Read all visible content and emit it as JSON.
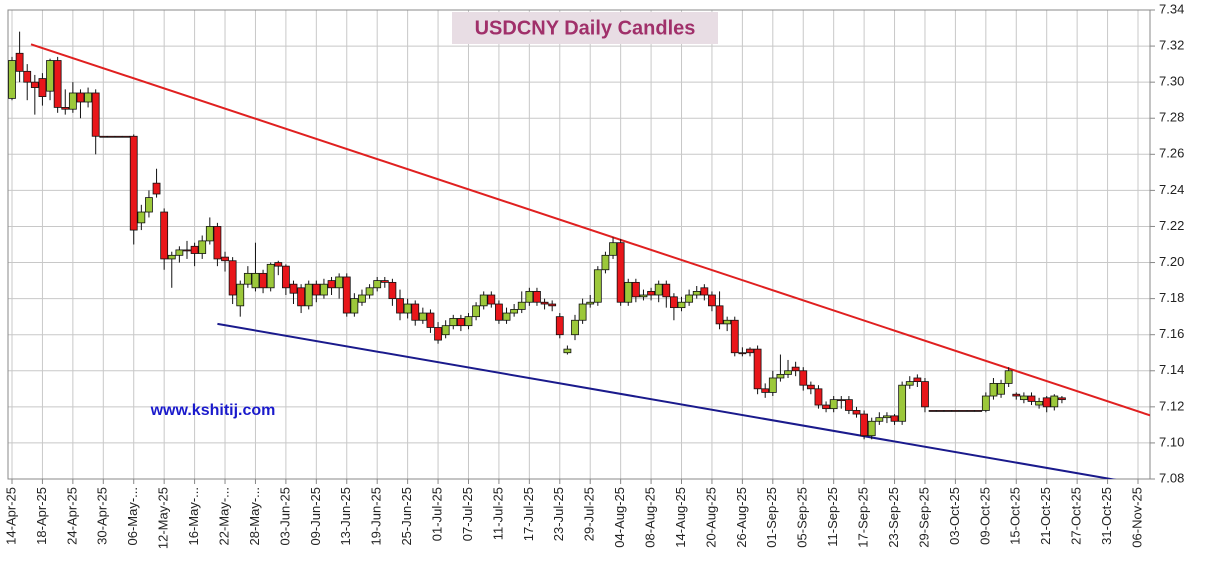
{
  "chart_data": {
    "type": "candlestick",
    "title": "USDCNY Daily Candles",
    "annotation": "www.kshitij.com",
    "categories": [
      "14-Apr-25",
      null,
      null,
      null,
      "18-Apr-25",
      null,
      null,
      null,
      "24-Apr-25",
      null,
      null,
      null,
      "30-Apr-25",
      null,
      null,
      null,
      "06-May-...",
      null,
      null,
      null,
      "12-May-25",
      null,
      null,
      null,
      "16-May-...",
      null,
      null,
      null,
      "22-May-...",
      null,
      null,
      null,
      "28-May-...",
      null,
      null,
      null,
      "03-Jun-25",
      null,
      null,
      null,
      "09-Jun-25",
      null,
      null,
      null,
      "13-Jun-25",
      null,
      null,
      null,
      "19-Jun-25",
      null,
      null,
      null,
      "25-Jun-25",
      null,
      null,
      null,
      "01-Jul-25",
      null,
      null,
      null,
      "07-Jul-25",
      null,
      null,
      null,
      "11-Jul-25",
      null,
      null,
      null,
      "17-Jul-25",
      null,
      null,
      null,
      "23-Jul-25",
      null,
      null,
      null,
      "29-Jul-25",
      null,
      null,
      null,
      "04-Aug-25",
      null,
      null,
      null,
      "08-Aug-25",
      null,
      null,
      null,
      "14-Aug-25",
      null,
      null,
      null,
      "20-Aug-25",
      null,
      null,
      null,
      "26-Aug-25",
      null,
      null,
      null,
      "01-Sep-25",
      null,
      null,
      null,
      "05-Sep-25",
      null,
      null,
      null,
      "11-Sep-25",
      null,
      null,
      null,
      "17-Sep-25",
      null,
      null,
      null,
      "23-Sep-25",
      null,
      null,
      null,
      "29-Sep-25",
      null,
      null,
      null,
      "03-Oct-25",
      null,
      null,
      null,
      "09-Oct-25",
      null,
      null,
      null,
      "15-Oct-25",
      null,
      null,
      null,
      "21-Oct-25",
      null,
      null,
      null,
      "27-Oct-25",
      null,
      null,
      null,
      "31-Oct-25",
      null,
      null,
      null,
      "06-Nov-25"
    ],
    "open": [
      7.291,
      7.316,
      7.306,
      7.3,
      7.302,
      7.295,
      7.312,
      7.286,
      7.285,
      7.294,
      7.289,
      7.294,
      7.27,
      7.27,
      7.27,
      7.27,
      7.27,
      7.222,
      7.228,
      7.244,
      7.228,
      7.202,
      7.204,
      7.207,
      7.209,
      7.205,
      7.212,
      7.22,
      7.203,
      7.201,
      7.176,
      7.188,
      7.186,
      7.194,
      7.186,
      7.2,
      7.198,
      7.188,
      7.186,
      7.176,
      7.188,
      7.182,
      7.19,
      7.186,
      7.192,
      7.172,
      7.178,
      7.182,
      7.186,
      7.19,
      7.189,
      7.18,
      7.172,
      7.177,
      7.168,
      7.172,
      7.164,
      7.16,
      7.165,
      7.169,
      7.165,
      7.17,
      7.176,
      7.182,
      7.177,
      7.168,
      7.172,
      7.174,
      7.178,
      7.184,
      7.178,
      7.177,
      7.17,
      7.15,
      7.16,
      7.168,
      7.177,
      7.178,
      7.196,
      7.204,
      7.211,
      7.178,
      7.189,
      7.181,
      7.184,
      7.182,
      7.188,
      7.181,
      7.175,
      7.178,
      7.182,
      7.186,
      7.182,
      7.176,
      7.166,
      7.168,
      7.15,
      7.152,
      7.152,
      7.13,
      7.128,
      7.136,
      7.138,
      7.142,
      7.14,
      7.132,
      7.13,
      7.121,
      7.119,
      7.124,
      7.124,
      7.118,
      7.116,
      7.104,
      7.112,
      7.114,
      7.115,
      7.112,
      7.132,
      7.136,
      7.134,
      7.118,
      7.118,
      7.118,
      7.118,
      7.118,
      7.118,
      7.118,
      7.118,
      7.126,
      7.127,
      7.133,
      7.127,
      7.124,
      7.126,
      7.121,
      7.125,
      7.12,
      7.125,
      null,
      null,
      null,
      null,
      null,
      null,
      null,
      null,
      null,
      null
    ],
    "high": [
      7.314,
      7.328,
      7.31,
      7.304,
      7.305,
      7.313,
      7.314,
      7.296,
      7.3,
      7.296,
      7.297,
      7.296,
      7.27,
      7.27,
      7.27,
      7.27,
      7.271,
      7.232,
      7.24,
      7.252,
      7.23,
      7.206,
      7.209,
      7.212,
      7.211,
      7.215,
      7.225,
      7.222,
      7.206,
      7.203,
      7.19,
      7.198,
      7.211,
      7.196,
      7.2,
      7.201,
      7.199,
      7.19,
      7.188,
      7.19,
      7.19,
      7.191,
      7.192,
      7.194,
      7.194,
      7.183,
      7.185,
      7.188,
      7.192,
      7.192,
      7.191,
      7.185,
      7.18,
      7.179,
      7.175,
      7.174,
      7.167,
      7.168,
      7.171,
      7.171,
      7.172,
      7.178,
      7.184,
      7.184,
      7.179,
      7.175,
      7.177,
      7.184,
      7.186,
      7.186,
      7.18,
      7.179,
      7.172,
      7.154,
      7.171,
      7.18,
      7.182,
      7.198,
      7.206,
      7.214,
      7.213,
      7.191,
      7.191,
      7.185,
      7.186,
      7.19,
      7.19,
      7.183,
      7.181,
      7.185,
      7.187,
      7.188,
      7.184,
      7.184,
      7.17,
      7.17,
      7.153,
      7.153,
      7.154,
      7.133,
      7.14,
      7.149,
      7.146,
      7.145,
      7.142,
      7.134,
      7.132,
      7.123,
      7.126,
      7.126,
      7.126,
      7.12,
      7.118,
      7.114,
      7.117,
      7.117,
      7.116,
      7.134,
      7.137,
      7.138,
      7.136,
      7.118,
      7.118,
      7.118,
      7.118,
      7.118,
      7.118,
      7.118,
      7.128,
      7.136,
      7.135,
      7.142,
      7.128,
      7.128,
      7.128,
      7.125,
      7.126,
      7.127,
      7.126,
      null,
      null,
      null,
      null,
      null,
      null,
      null,
      null,
      null,
      null
    ],
    "low": [
      7.29,
      7.3,
      7.29,
      7.282,
      7.287,
      7.29,
      7.283,
      7.282,
      7.283,
      7.28,
      7.286,
      7.26,
      7.27,
      7.27,
      7.27,
      7.27,
      7.21,
      7.218,
      7.225,
      7.236,
      7.196,
      7.186,
      7.2,
      7.202,
      7.198,
      7.202,
      7.21,
      7.198,
      7.195,
      7.177,
      7.17,
      7.186,
      7.184,
      7.183,
      7.184,
      7.193,
      7.182,
      7.177,
      7.172,
      7.174,
      7.178,
      7.18,
      7.182,
      7.18,
      7.17,
      7.17,
      7.176,
      7.18,
      7.184,
      7.186,
      7.176,
      7.168,
      7.169,
      7.165,
      7.166,
      7.161,
      7.155,
      7.158,
      7.163,
      7.162,
      7.163,
      7.168,
      7.174,
      7.175,
      7.166,
      7.166,
      7.17,
      7.172,
      7.176,
      7.176,
      7.174,
      7.173,
      7.158,
      7.149,
      7.157,
      7.166,
      7.175,
      7.176,
      7.194,
      7.202,
      7.176,
      7.176,
      7.178,
      7.179,
      7.179,
      7.178,
      7.175,
      7.168,
      7.173,
      7.176,
      7.18,
      7.179,
      7.173,
      7.163,
      7.162,
      7.148,
      7.148,
      7.148,
      7.127,
      7.125,
      7.126,
      7.134,
      7.136,
      7.137,
      7.129,
      7.127,
      7.119,
      7.117,
      7.117,
      7.119,
      7.116,
      7.114,
      7.102,
      7.102,
      7.11,
      7.111,
      7.11,
      7.11,
      7.13,
      7.131,
      7.117,
      7.118,
      7.118,
      7.118,
      7.118,
      7.118,
      7.118,
      7.118,
      7.117,
      7.124,
      7.125,
      7.131,
      7.124,
      7.122,
      7.121,
      7.119,
      7.117,
      7.118,
      7.122,
      null,
      null,
      null,
      null,
      null,
      null,
      null,
      null,
      null,
      null
    ],
    "close": [
      7.312,
      7.306,
      7.3,
      7.297,
      7.292,
      7.312,
      7.286,
      7.285,
      7.294,
      7.289,
      7.294,
      7.27,
      7.27,
      7.27,
      7.27,
      7.27,
      7.218,
      7.228,
      7.236,
      7.238,
      7.202,
      7.204,
      7.207,
      7.207,
      7.205,
      7.212,
      7.22,
      7.202,
      7.201,
      7.182,
      7.188,
      7.194,
      7.194,
      7.186,
      7.199,
      7.198,
      7.186,
      7.183,
      7.176,
      7.188,
      7.182,
      7.188,
      7.186,
      7.192,
      7.172,
      7.18,
      7.182,
      7.186,
      7.19,
      7.189,
      7.18,
      7.172,
      7.177,
      7.168,
      7.172,
      7.164,
      7.157,
      7.165,
      7.169,
      7.165,
      7.17,
      7.176,
      7.182,
      7.177,
      7.168,
      7.172,
      7.174,
      7.178,
      7.184,
      7.178,
      7.177,
      7.176,
      7.16,
      7.152,
      7.168,
      7.177,
      7.178,
      7.196,
      7.204,
      7.211,
      7.178,
      7.189,
      7.181,
      7.182,
      7.182,
      7.188,
      7.181,
      7.175,
      7.178,
      7.182,
      7.184,
      7.182,
      7.176,
      7.166,
      7.168,
      7.15,
      7.15,
      7.15,
      7.13,
      7.128,
      7.136,
      7.138,
      7.14,
      7.14,
      7.132,
      7.13,
      7.121,
      7.119,
      7.124,
      7.124,
      7.118,
      7.116,
      7.104,
      7.112,
      7.114,
      7.115,
      7.112,
      7.132,
      7.134,
      7.134,
      7.12,
      7.118,
      7.118,
      7.118,
      7.118,
      7.118,
      7.118,
      7.118,
      7.126,
      7.133,
      7.133,
      7.14,
      7.126,
      7.126,
      7.123,
      7.123,
      7.12,
      7.126,
      7.124,
      null,
      null,
      null,
      null,
      null,
      null,
      null,
      null,
      null,
      null
    ],
    "up_color": "#9cc83a",
    "down_color": "#e8161a",
    "trendlines": [
      {
        "color": "#e02020",
        "x": [
          2.5,
          150.5
        ],
        "y": [
          7.321,
          7.114
        ]
      },
      {
        "color": "#1a1a8c",
        "x": [
          27,
          148.5
        ],
        "y": [
          7.166,
          7.077
        ]
      }
    ],
    "ylim": [
      7.08,
      7.34
    ],
    "yticks": [
      7.08,
      {
        "value": 7.1,
        "label": "7.10"
      },
      7.12,
      7.14,
      7.16,
      7.18,
      {
        "value": 7.2,
        "label": "7.20"
      },
      7.22,
      7.24,
      7.26,
      7.28,
      {
        "value": 7.3,
        "label": "7.30"
      },
      7.32,
      7.34
    ],
    "grid": true
  }
}
